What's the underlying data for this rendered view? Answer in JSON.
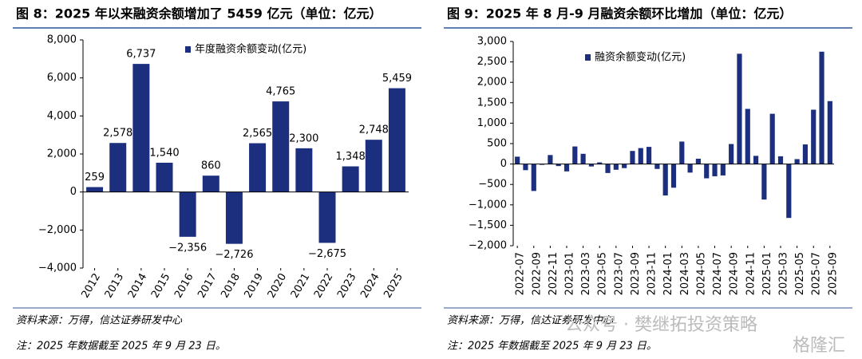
{
  "chart_data": [
    {
      "type": "bar",
      "title": "图 8：2025 年以来融资余额增加了 5459 亿元（单位：亿元）",
      "categories": [
        "2012",
        "2013",
        "2014",
        "2015",
        "2016",
        "2017",
        "2018",
        "2019",
        "2020",
        "2021",
        "2022",
        "2023",
        "2024",
        "2025"
      ],
      "series": [
        {
          "name": "年度融资余额变动(亿元)",
          "color": "#1c2f7e",
          "values": [
            259,
            2578,
            6737,
            1540,
            -2356,
            860,
            -2726,
            2565,
            4765,
            2300,
            -2675,
            1348,
            2748,
            5459
          ],
          "value_labels": [
            "259",
            "2,578",
            "6,737",
            "1,540",
            "−2,356",
            "860",
            "−2,726",
            "2,565",
            "4,765",
            "2,300",
            "−2,675",
            "1,348",
            "2,748",
            "5,459"
          ]
        }
      ],
      "ylim": [
        -4000,
        8000
      ],
      "yticks": [
        {
          "value": -4000,
          "label": "−4,000"
        },
        {
          "value": -2000,
          "label": "−2,000"
        },
        0,
        {
          "value": 2000,
          "label": "2,000"
        },
        {
          "value": 4000,
          "label": "4,000"
        },
        {
          "value": 6000,
          "label": "6,000"
        },
        {
          "value": 8000,
          "label": "8,000"
        }
      ],
      "legend": "top",
      "source": "资料来源：万得，信达证券研发中心",
      "note": "注：2025 年数据截至 2025 年 9 月 23 日。"
    },
    {
      "type": "bar",
      "title": "图 9：2025 年 8 月-9 月融资余额环比增加（单位：亿元）",
      "categories": [
        "2022-07",
        null,
        "2022-09",
        null,
        "2022-11",
        null,
        "2023-01",
        null,
        "2023-03",
        null,
        "2023-05",
        null,
        "2023-07",
        null,
        "2023-09",
        null,
        "2023-11",
        null,
        "2024-01",
        null,
        "2024-03",
        null,
        "2024-05",
        null,
        "2024-07",
        null,
        "2024-09",
        null,
        "2024-11",
        null,
        "2025-01",
        null,
        "2025-03",
        null,
        "2025-05",
        null,
        "2025-07",
        null,
        "2025-09"
      ],
      "series": [
        {
          "name": "融资余额变动(亿元)",
          "color": "#1c2f7e",
          "values": [
            180,
            -150,
            -660,
            -20,
            220,
            -50,
            -180,
            430,
            250,
            -60,
            40,
            -220,
            -140,
            -100,
            320,
            390,
            420,
            -120,
            -770,
            -580,
            550,
            -210,
            130,
            -350,
            -300,
            -280,
            490,
            2700,
            1350,
            200,
            -870,
            1230,
            190,
            -1320,
            120,
            480,
            1330,
            2750,
            1540
          ]
        }
      ],
      "ylim": [
        -2000,
        3000
      ],
      "yticks": [
        {
          "value": -2000,
          "label": "−2,000"
        },
        {
          "value": -1500,
          "label": "−1,500"
        },
        {
          "value": -1000,
          "label": "−1,000"
        },
        {
          "value": -500,
          "label": "−500"
        },
        0,
        500,
        {
          "value": 1000,
          "label": "1,000"
        },
        {
          "value": 1500,
          "label": "1,500"
        },
        {
          "value": 2000,
          "label": "2,000"
        },
        {
          "value": 2500,
          "label": "2,500"
        },
        {
          "value": 3000,
          "label": "3,000"
        }
      ],
      "legend": "top",
      "source": "资料来源：万得，信达证券研发中心",
      "note": "注：2025 年数据截至 2025 年 9 月 23 日。"
    }
  ],
  "watermark": {
    "account": "公众号 · 樊继拓投资策略",
    "brand": "格隆汇"
  }
}
